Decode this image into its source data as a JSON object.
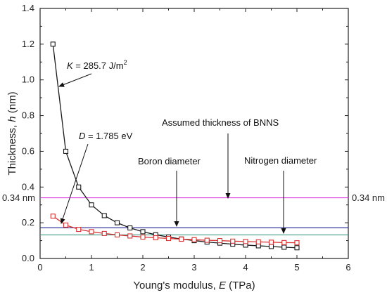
{
  "chart_data": {
    "type": "line",
    "title": "",
    "xlabel": {
      "prefix": "Young's modulus, ",
      "var": "E",
      "unit": " (TPa)"
    },
    "ylabel": {
      "prefix": "Thickness, ",
      "var": "h",
      "unit": " (nm)"
    },
    "xlim": [
      0,
      6
    ],
    "ylim": [
      0,
      1.4
    ],
    "xticks": [
      0,
      1,
      2,
      3,
      4,
      5,
      6
    ],
    "yticks": [
      0.0,
      0.2,
      0.4,
      0.6,
      0.8,
      1.0,
      1.2,
      1.4
    ],
    "grid": false,
    "legend": "none",
    "series": [
      {
        "color": "#1a1a1a",
        "marker": "open-square",
        "x": [
          0.25,
          0.5,
          0.75,
          1.0,
          1.25,
          1.5,
          1.75,
          2.0,
          2.25,
          2.5,
          2.75,
          3.0,
          3.25,
          3.5,
          3.75,
          4.0,
          4.25,
          4.5,
          4.75,
          5.0
        ],
        "y": [
          1.2,
          0.6,
          0.4,
          0.3,
          0.24,
          0.2,
          0.171,
          0.15,
          0.133,
          0.12,
          0.109,
          0.1,
          0.092,
          0.086,
          0.08,
          0.075,
          0.071,
          0.067,
          0.063,
          0.06
        ]
      },
      {
        "color": "#d93030",
        "marker": "open-square",
        "x": [
          0.25,
          0.5,
          0.75,
          1.0,
          1.25,
          1.5,
          1.75,
          2.0,
          2.25,
          2.5,
          2.75,
          3.0,
          3.25,
          3.5,
          3.75,
          4.0,
          4.25,
          4.5,
          4.75,
          5.0
        ],
        "y": [
          0.237,
          0.187,
          0.163,
          0.15,
          0.14,
          0.132,
          0.126,
          0.12,
          0.116,
          0.112,
          0.108,
          0.105,
          0.102,
          0.1,
          0.097,
          0.095,
          0.093,
          0.091,
          0.089,
          0.088
        ]
      }
    ],
    "hlines": [
      {
        "y": 0.34,
        "color": "#e040e0",
        "label": "0.34 nm"
      },
      {
        "y": 0.172,
        "color": "#3a3aa0"
      },
      {
        "y": 0.132,
        "color": "#3a9a80"
      }
    ],
    "annotations": {
      "k_label": {
        "var": "K",
        "text": " = 285.7 J/m",
        "sup": "2"
      },
      "d_label": {
        "var": "D",
        "text": " = 1.785 eV"
      },
      "bnns": "Assumed thickness of BNNS",
      "boron": "Boron diameter",
      "nitrogen": "Nitrogen diameter"
    }
  }
}
